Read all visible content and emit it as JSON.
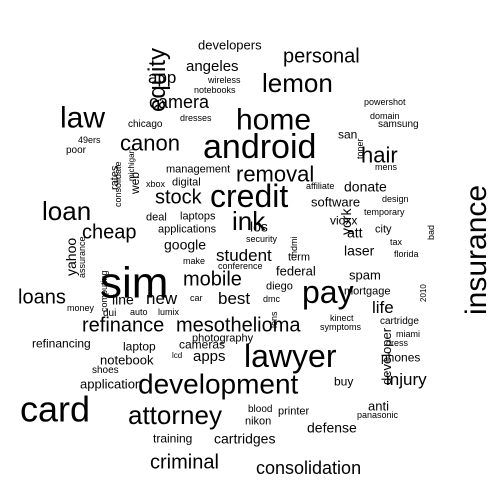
{
  "colors": {
    "background": "#ffffff",
    "text": "#000000"
  },
  "words": [
    {
      "text": "sim",
      "weight": 44
    },
    {
      "text": "card",
      "weight": 36
    },
    {
      "text": "android",
      "weight": 34
    },
    {
      "text": "lawyer",
      "weight": 32
    },
    {
      "text": "insurance",
      "weight": 30
    },
    {
      "text": "credit",
      "weight": 32
    },
    {
      "text": "pay",
      "weight": 32
    },
    {
      "text": "home",
      "weight": 30
    },
    {
      "text": "development",
      "weight": 28
    },
    {
      "text": "law",
      "weight": 30
    },
    {
      "text": "attorney",
      "weight": 26
    },
    {
      "text": "lemon",
      "weight": 26
    },
    {
      "text": "loan",
      "weight": 26
    },
    {
      "text": "equity",
      "weight": 24
    },
    {
      "text": "ink",
      "weight": 26
    },
    {
      "text": "canon",
      "weight": 22
    },
    {
      "text": "hair",
      "weight": 22
    },
    {
      "text": "removal",
      "weight": 22
    },
    {
      "text": "loans",
      "weight": 20
    },
    {
      "text": "mesothelioma",
      "weight": 20
    },
    {
      "text": "mobile",
      "weight": 20
    },
    {
      "text": "stock",
      "weight": 20
    },
    {
      "text": "cheap",
      "weight": 20
    },
    {
      "text": "refinance",
      "weight": 20
    },
    {
      "text": "criminal",
      "weight": 20
    },
    {
      "text": "personal",
      "weight": 20
    },
    {
      "text": "consolidation",
      "weight": 18
    },
    {
      "text": "camera",
      "weight": 18
    },
    {
      "text": "student",
      "weight": 17
    },
    {
      "text": "injury",
      "weight": 17
    },
    {
      "text": "life",
      "weight": 17
    },
    {
      "text": "new",
      "weight": 17
    },
    {
      "text": "best",
      "weight": 17
    },
    {
      "text": "app",
      "weight": 17
    },
    {
      "text": "apps",
      "weight": 15
    },
    {
      "text": "angeles",
      "weight": 15
    },
    {
      "text": "cartridges",
      "weight": 14
    },
    {
      "text": "defense",
      "weight": 14
    },
    {
      "text": "laser",
      "weight": 14
    },
    {
      "text": "york",
      "weight": 14
    },
    {
      "text": "att",
      "weight": 14
    },
    {
      "text": "line",
      "weight": 14
    },
    {
      "text": "donate",
      "weight": 14
    },
    {
      "text": "yahoo",
      "weight": 14
    },
    {
      "text": "google",
      "weight": 14
    },
    {
      "text": "los",
      "weight": 14
    },
    {
      "text": "developers",
      "weight": 13
    },
    {
      "text": "spam",
      "weight": 13
    },
    {
      "text": "anti",
      "weight": 13
    },
    {
      "text": "software",
      "weight": 13
    },
    {
      "text": "notebook",
      "weight": 13
    },
    {
      "text": "application",
      "weight": 13
    },
    {
      "text": "developer",
      "weight": 13
    },
    {
      "text": "federal",
      "weight": 13
    },
    {
      "text": "phones",
      "weight": 12
    },
    {
      "text": "training",
      "weight": 12
    },
    {
      "text": "laptop",
      "weight": 12
    },
    {
      "text": "refinancing",
      "weight": 12
    },
    {
      "text": "buy",
      "weight": 12
    },
    {
      "text": "cameras",
      "weight": 12
    },
    {
      "text": "mortgage",
      "weight": 11
    },
    {
      "text": "vioxx",
      "weight": 12
    },
    {
      "text": "city",
      "weight": 11
    },
    {
      "text": "web",
      "weight": 12
    },
    {
      "text": "san",
      "weight": 12
    },
    {
      "text": "rates",
      "weight": 11
    },
    {
      "text": "printer",
      "weight": 11
    },
    {
      "text": "nikon",
      "weight": 11
    },
    {
      "text": "diego",
      "weight": 11
    },
    {
      "text": "term",
      "weight": 11
    },
    {
      "text": "management",
      "weight": 11
    },
    {
      "text": "applications",
      "weight": 11
    },
    {
      "text": "photography",
      "weight": 11
    },
    {
      "text": "digital",
      "weight": 11
    },
    {
      "text": "laptops",
      "weight": 11
    },
    {
      "text": "deal",
      "weight": 11
    },
    {
      "text": "samsung",
      "weight": 10
    },
    {
      "text": "cartridge",
      "weight": 10
    },
    {
      "text": "dui",
      "weight": 10
    },
    {
      "text": "blood",
      "weight": 10
    },
    {
      "text": "chicago",
      "weight": 10
    },
    {
      "text": "shoes",
      "weight": 10
    },
    {
      "text": "poor",
      "weight": 10
    },
    {
      "text": "make",
      "weight": 9
    },
    {
      "text": "consolidate",
      "weight": 9
    },
    {
      "text": "assurance",
      "weight": 9
    },
    {
      "text": "toner",
      "weight": 9
    },
    {
      "text": "powershot",
      "weight": 9
    },
    {
      "text": "domain",
      "weight": 9
    },
    {
      "text": "mens",
      "weight": 9
    },
    {
      "text": "design",
      "weight": 9
    },
    {
      "text": "temporary",
      "weight": 9
    },
    {
      "text": "tax",
      "weight": 9
    },
    {
      "text": "bad",
      "weight": 9
    },
    {
      "text": "florida",
      "weight": 9
    },
    {
      "text": "miami",
      "weight": 9
    },
    {
      "text": "dress",
      "weight": 9
    },
    {
      "text": "kinect",
      "weight": 9
    },
    {
      "text": "symptoms",
      "weight": 9
    },
    {
      "text": "panasonic",
      "weight": 9
    },
    {
      "text": "computing",
      "weight": 9
    },
    {
      "text": "money",
      "weight": 9
    },
    {
      "text": "auto",
      "weight": 9
    },
    {
      "text": "lumix",
      "weight": 9
    },
    {
      "text": "car",
      "weight": 9
    },
    {
      "text": "dmc",
      "weight": 9
    },
    {
      "text": "lens",
      "weight": 9
    },
    {
      "text": "hdmi",
      "weight": 9
    },
    {
      "text": "conference",
      "weight": 9
    },
    {
      "text": "security",
      "weight": 9
    },
    {
      "text": "affiliate",
      "weight": 9
    },
    {
      "text": "xbox",
      "weight": 9
    },
    {
      "text": "wireless",
      "weight": 9
    },
    {
      "text": "notebooks",
      "weight": 9
    },
    {
      "text": "dresses",
      "weight": 9
    },
    {
      "text": "49ers",
      "weight": 9
    },
    {
      "text": "michigan",
      "weight": 8
    },
    {
      "text": "lcd",
      "weight": 8
    },
    {
      "text": "2010",
      "weight": 8
    }
  ]
}
